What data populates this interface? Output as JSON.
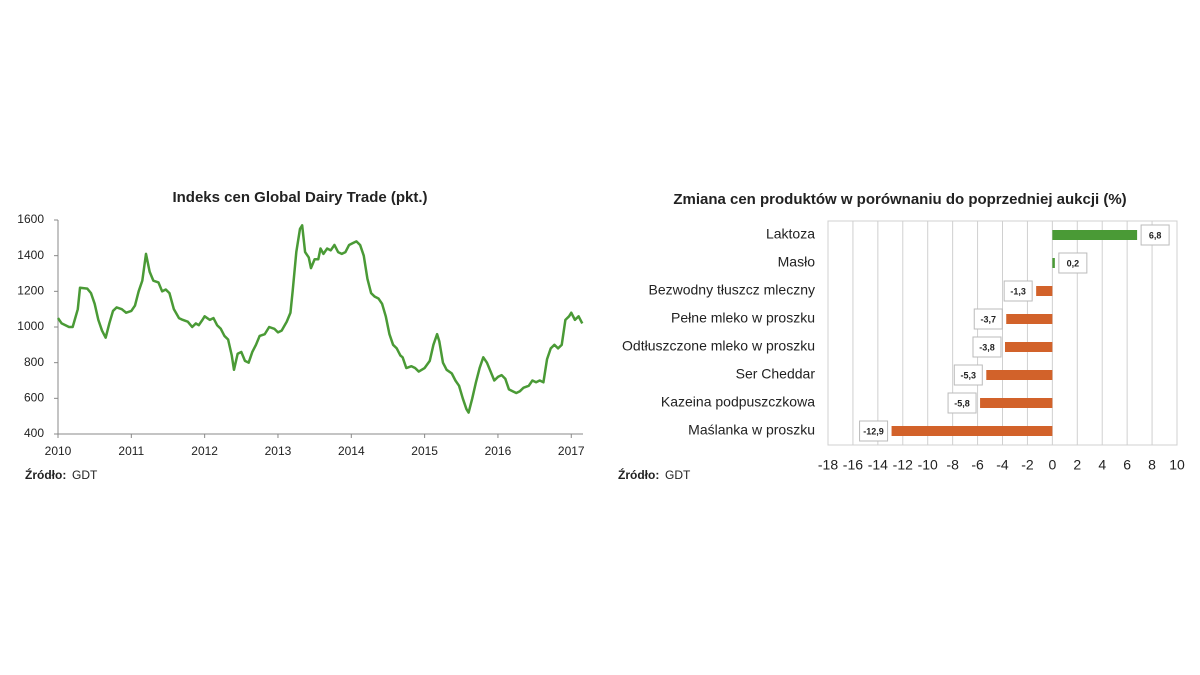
{
  "chart_data": [
    {
      "type": "line",
      "title": "Indeks cen Global Dairy Trade (pkt.)",
      "source_label": "Źródło:",
      "source": "GDT",
      "color": "#4a9a36",
      "xlim": [
        2010,
        2017.16
      ],
      "xticks": [
        2010,
        2011,
        2012,
        2013,
        2014,
        2015,
        2016,
        2017
      ],
      "ylim": [
        400,
        1600
      ],
      "yticks": [
        400,
        600,
        800,
        1000,
        1200,
        1400,
        1600
      ],
      "x": [
        2010.0,
        2010.05,
        2010.15,
        2010.2,
        2010.27,
        2010.3,
        2010.4,
        2010.45,
        2010.5,
        2010.55,
        2010.6,
        2010.65,
        2010.7,
        2010.75,
        2010.8,
        2010.87,
        2010.93,
        2011.0,
        2011.05,
        2011.1,
        2011.15,
        2011.2,
        2011.25,
        2011.3,
        2011.37,
        2011.42,
        2011.47,
        2011.52,
        2011.58,
        2011.65,
        2011.7,
        2011.77,
        2011.83,
        2011.88,
        2011.92,
        2011.97,
        2012.0,
        2012.07,
        2012.12,
        2012.17,
        2012.22,
        2012.27,
        2012.32,
        2012.37,
        2012.4,
        2012.45,
        2012.5,
        2012.55,
        2012.6,
        2012.65,
        2012.7,
        2012.75,
        2012.82,
        2012.88,
        2012.95,
        2013.0,
        2013.05,
        2013.12,
        2013.17,
        2013.2,
        2013.25,
        2013.3,
        2013.33,
        2013.37,
        2013.42,
        2013.45,
        2013.5,
        2013.55,
        2013.58,
        2013.62,
        2013.67,
        2013.72,
        2013.77,
        2013.82,
        2013.87,
        2013.92,
        2013.97,
        2014.02,
        2014.07,
        2014.12,
        2014.17,
        2014.22,
        2014.27,
        2014.32,
        2014.37,
        2014.42,
        2014.47,
        2014.52,
        2014.57,
        2014.62,
        2014.67,
        2014.7,
        2014.75,
        2014.82,
        2014.87,
        2014.92,
        2015.0,
        2015.07,
        2015.12,
        2015.17,
        2015.2,
        2015.25,
        2015.3,
        2015.37,
        2015.42,
        2015.47,
        2015.52,
        2015.57,
        2015.6,
        2015.65,
        2015.7,
        2015.75,
        2015.8,
        2015.85,
        2015.9,
        2015.95,
        2016.0,
        2016.05,
        2016.1,
        2016.15,
        2016.2,
        2016.25,
        2016.3,
        2016.35,
        2016.42,
        2016.47,
        2016.52,
        2016.57,
        2016.62,
        2016.67,
        2016.72,
        2016.77,
        2016.82,
        2016.87,
        2016.92,
        2016.97,
        2017.0,
        2017.05,
        2017.1,
        2017.15
      ],
      "values": [
        1050,
        1020,
        1000,
        1000,
        1100,
        1220,
        1215,
        1190,
        1130,
        1040,
        980,
        940,
        1020,
        1090,
        1110,
        1100,
        1080,
        1090,
        1120,
        1200,
        1260,
        1410,
        1310,
        1260,
        1250,
        1200,
        1210,
        1190,
        1100,
        1050,
        1040,
        1030,
        1000,
        1020,
        1010,
        1040,
        1060,
        1040,
        1050,
        1010,
        990,
        950,
        930,
        840,
        760,
        850,
        860,
        810,
        800,
        860,
        900,
        950,
        960,
        1000,
        990,
        970,
        980,
        1030,
        1080,
        1200,
        1420,
        1550,
        1570,
        1420,
        1390,
        1330,
        1380,
        1380,
        1440,
        1410,
        1440,
        1430,
        1460,
        1420,
        1410,
        1420,
        1460,
        1470,
        1480,
        1460,
        1400,
        1270,
        1190,
        1170,
        1160,
        1130,
        1060,
        960,
        900,
        880,
        840,
        830,
        770,
        780,
        770,
        750,
        770,
        810,
        900,
        960,
        920,
        800,
        760,
        740,
        700,
        670,
        600,
        540,
        520,
        600,
        690,
        770,
        830,
        800,
        750,
        700,
        720,
        730,
        710,
        650,
        640,
        630,
        640,
        660,
        670,
        700,
        690,
        700,
        690,
        820,
        880,
        900,
        880,
        900,
        1040,
        1060,
        1080,
        1040,
        1060,
        1020
      ]
    },
    {
      "type": "bar",
      "title": "Zmiana cen produktów w porównaniu do poprzedniej aukcji (%)",
      "source_label": "Źródło:",
      "source": "GDT",
      "categories": [
        "Laktoza",
        "Masło",
        "Bezwodny tłuszcz mleczny",
        "Pełne mleko w proszku",
        "Odtłuszczone mleko w proszku",
        "Ser Cheddar",
        "Kazeina podpuszczkowa",
        "Maślanka w proszku"
      ],
      "values": [
        6.8,
        0.2,
        -1.3,
        -3.7,
        -3.8,
        -5.3,
        -5.8,
        -12.9
      ],
      "value_labels": [
        "6,8",
        "0,2",
        "-1,3",
        "-3,7",
        "-3,8",
        "-5,3",
        "-5,8",
        "-12,9"
      ],
      "colors": [
        "#4a9a36",
        "#4a9a36",
        "#d2622a",
        "#d2622a",
        "#d2622a",
        "#d2622a",
        "#d2622a",
        "#d2622a"
      ],
      "xlim": [
        -18,
        10
      ],
      "xticks": [
        -18,
        -16,
        -14,
        -12,
        -10,
        -8,
        -6,
        -4,
        -2,
        0,
        2,
        4,
        6,
        8,
        10
      ],
      "grid": true
    }
  ]
}
